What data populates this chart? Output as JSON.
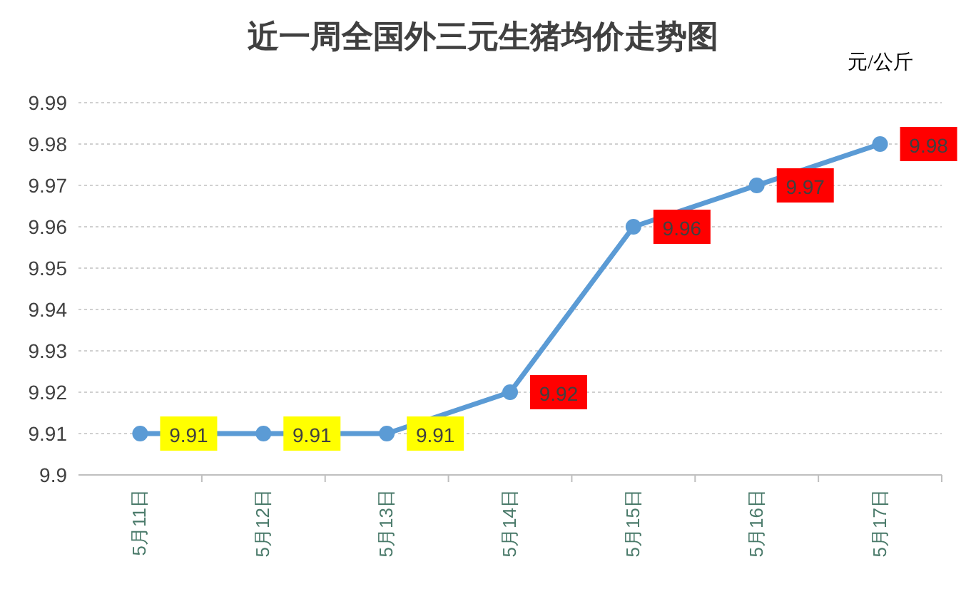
{
  "chart_data": {
    "type": "line",
    "title": "近一周全国外三元生猪均价走势图",
    "annotations": [
      "元/公斤"
    ],
    "categories": [
      "5月11日",
      "5月12日",
      "5月13日",
      "5月14日",
      "5月15日",
      "5月16日",
      "5月17日"
    ],
    "series": [
      {
        "color": "#5b9bd5",
        "values": [
          9.91,
          9.91,
          9.91,
          9.92,
          9.96,
          9.97,
          9.98
        ]
      }
    ],
    "ylim": [
      9.9,
      9.99
    ],
    "yticks": [
      9.9,
      9.91,
      9.92,
      9.93,
      9.94,
      9.95,
      9.96,
      9.97,
      9.98,
      9.99
    ],
    "grid": "y",
    "marker": "circle",
    "line_style": "solid",
    "data_labels": true
  }
}
